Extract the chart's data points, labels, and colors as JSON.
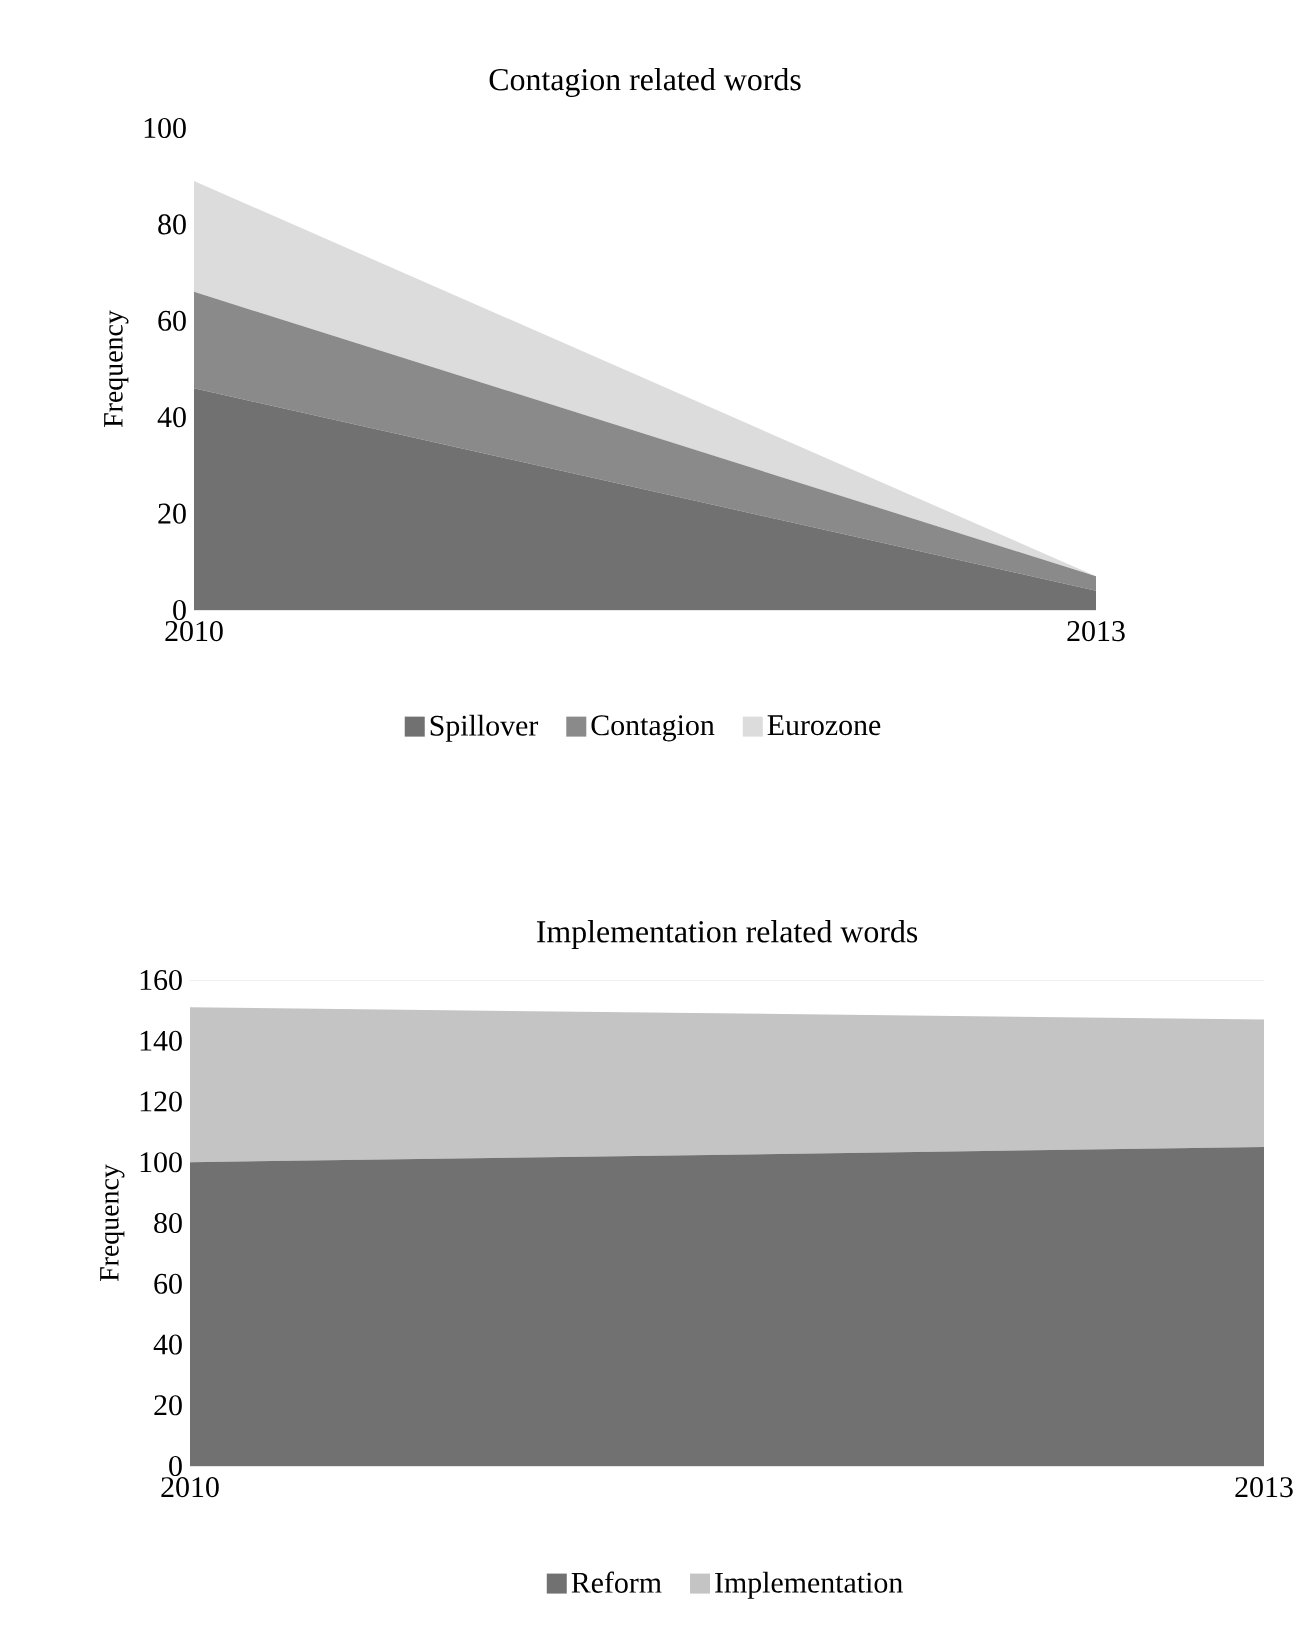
{
  "chart_data": [
    {
      "type": "area",
      "title": "Contagion related words",
      "ylabel": "Frequency",
      "categories": [
        "2010",
        "2013"
      ],
      "ylim": [
        0,
        100
      ],
      "yticks": [
        0,
        20,
        40,
        60,
        80,
        100
      ],
      "stacked": true,
      "legend": "bottom",
      "series": [
        {
          "name": "Spillover",
          "color": "#717171",
          "values": [
            46,
            4
          ]
        },
        {
          "name": "Contagion",
          "color": "#8a8a8a",
          "values": [
            20,
            3
          ]
        },
        {
          "name": "Eurozone",
          "color": "#dcdcdc",
          "values": [
            23,
            0
          ]
        }
      ]
    },
    {
      "type": "area",
      "title": "Implementation related words",
      "ylabel": "Frequency",
      "categories": [
        "2010",
        "2013"
      ],
      "ylim": [
        0,
        160
      ],
      "yticks": [
        0,
        20,
        40,
        60,
        80,
        100,
        120,
        140,
        160
      ],
      "stacked": true,
      "legend": "bottom",
      "ref_lines": [
        {
          "axis": "y",
          "value": 160,
          "color": "#d9d9d9"
        }
      ],
      "series": [
        {
          "name": "Reform",
          "color": "#717171",
          "values": [
            100,
            105
          ]
        },
        {
          "name": "Implementation",
          "color": "#c4c4c4",
          "values": [
            51,
            42
          ]
        }
      ]
    }
  ]
}
